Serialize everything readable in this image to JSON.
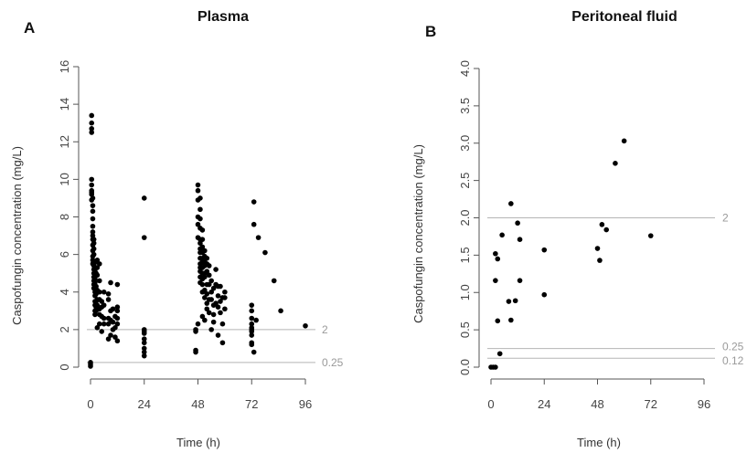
{
  "chart_data": [
    {
      "type": "scatter",
      "panel_label": "A",
      "title": "Plasma",
      "xlabel": "Time (h)",
      "ylabel": "Caspofungin concentration (mg/L)",
      "xlim": [
        0,
        96
      ],
      "ylim": [
        0,
        16
      ],
      "xticks": [
        0,
        24,
        48,
        72,
        96
      ],
      "yticks": [
        0,
        2,
        4,
        6,
        8,
        10,
        12,
        14,
        16
      ],
      "reference_lines": [
        {
          "y": 2,
          "label": "2"
        },
        {
          "y": 0.25,
          "label": "0.25"
        }
      ],
      "x": [
        0,
        0,
        0,
        0.5,
        0.5,
        0.5,
        0.5,
        0.5,
        0.5,
        0.5,
        0.5,
        0.5,
        0.5,
        1,
        1,
        1,
        1,
        1,
        1,
        1,
        1,
        1,
        1,
        1,
        1,
        1,
        1.5,
        1.5,
        1.5,
        1.5,
        1.5,
        1.5,
        1.5,
        1.5,
        1.5,
        1.5,
        1.5,
        2,
        2,
        2,
        2,
        2,
        2,
        2,
        2,
        2,
        2,
        2,
        2.5,
        2.5,
        2.5,
        2.5,
        2.5,
        2.5,
        2.5,
        2.5,
        3,
        3,
        3,
        3,
        3,
        3,
        3,
        4,
        4,
        4,
        4,
        4,
        4,
        4,
        5,
        5,
        5,
        5,
        6,
        6,
        6,
        6,
        8,
        8,
        8,
        8,
        8,
        9,
        9,
        9,
        9,
        10,
        10,
        10,
        11,
        11,
        11,
        12,
        12,
        12,
        12,
        12,
        12,
        24,
        24,
        24,
        24,
        24,
        24,
        24,
        24,
        24,
        24,
        47,
        47,
        47,
        47,
        48,
        48,
        48,
        48,
        48,
        48,
        48,
        49,
        49,
        49,
        49,
        49,
        49,
        49,
        49,
        49,
        49,
        49,
        49,
        49,
        49,
        50,
        50,
        50,
        50,
        50,
        50,
        50,
        50,
        50,
        50,
        50,
        50,
        51,
        51,
        51,
        51,
        51,
        51,
        51,
        51,
        51,
        52,
        52,
        52,
        52,
        52,
        52,
        52,
        53,
        53,
        53,
        53,
        53,
        54,
        54,
        54,
        54,
        55,
        55,
        55,
        55,
        56,
        56,
        56,
        57,
        57,
        57,
        57,
        58,
        58,
        58,
        59,
        59,
        59,
        60,
        60,
        60,
        72,
        72,
        72,
        72,
        72,
        72,
        72,
        72,
        72,
        72,
        73,
        73,
        73,
        74,
        75,
        78,
        82,
        85,
        96
      ],
      "y": [
        0.05,
        0.15,
        0.25,
        13.4,
        13.0,
        12.7,
        12.5,
        10.0,
        9.7,
        9.4,
        9.3,
        9.2,
        8.9,
        9.0,
        8.6,
        8.3,
        7.9,
        7.5,
        7.2,
        7.0,
        6.8,
        6.5,
        6.2,
        5.9,
        5.7,
        5.5,
        6.8,
        6.6,
        6.3,
        6.0,
        5.4,
        5.2,
        5.0,
        4.8,
        4.6,
        4.4,
        4.2,
        5.1,
        4.9,
        4.7,
        4.5,
        4.3,
        4.0,
        3.8,
        3.5,
        3.3,
        3.0,
        2.8,
        5.6,
        5.0,
        4.3,
        4.0,
        3.9,
        3.5,
        3.2,
        3.0,
        5.7,
        5.3,
        4.9,
        4.1,
        3.6,
        3.3,
        2.1,
        5.5,
        4.6,
        4.0,
        3.6,
        3.1,
        2.8,
        2.3,
        3.5,
        3.2,
        2.7,
        1.9,
        4.0,
        3.3,
        2.6,
        2.3,
        3.9,
        3.6,
        2.6,
        2.3,
        1.5,
        4.5,
        3.0,
        2.5,
        1.7,
        3.1,
        2.4,
        2.0,
        2.7,
        2.1,
        1.6,
        4.4,
        3.2,
        3.0,
        2.6,
        2.3,
        1.4,
        9.0,
        6.9,
        2.0,
        1.9,
        1.8,
        1.5,
        1.3,
        1.0,
        0.8,
        0.6,
        2.0,
        1.9,
        0.9,
        0.8,
        9.7,
        9.4,
        8.9,
        8.0,
        7.6,
        6.9,
        2.3,
        9.0,
        8.4,
        7.9,
        7.4,
        6.8,
        6.6,
        6.3,
        6.1,
        5.8,
        5.5,
        5.3,
        5.1,
        4.8,
        4.5,
        7.3,
        6.8,
        6.4,
        6.1,
        5.8,
        5.6,
        5.3,
        5.0,
        4.7,
        4.4,
        4.0,
        2.7,
        6.2,
        5.9,
        5.6,
        5.4,
        5.0,
        4.8,
        4.1,
        3.7,
        2.5,
        5.8,
        5.5,
        5.1,
        4.4,
        3.9,
        3.4,
        3.1,
        5.4,
        4.9,
        4.4,
        3.6,
        2.9,
        4.6,
        4.0,
        3.6,
        2.0,
        4.2,
        3.3,
        2.8,
        2.4,
        5.2,
        4.4,
        3.4,
        4.3,
        3.8,
        3.2,
        1.7,
        4.3,
        3.5,
        2.9,
        3.7,
        2.3,
        1.3,
        4.0,
        3.7,
        3.1,
        3.3,
        3.0,
        2.6,
        2.3,
        2.1,
        2.0,
        1.9,
        1.7,
        1.3,
        1.2,
        0.8,
        8.8,
        7.6,
        2.5,
        6.9,
        6.1,
        4.6,
        3.0,
        2.2
      ],
      "point_color": "#000000"
    },
    {
      "type": "scatter",
      "panel_label": "B",
      "title": "Peritoneal fluid",
      "xlabel": "Time (h)",
      "ylabel": "Caspofungin concentration (mg/L)",
      "xlim": [
        0,
        96
      ],
      "ylim": [
        0,
        4
      ],
      "xticks": [
        0,
        24,
        48,
        72,
        96
      ],
      "yticks": [
        "0.0",
        "0.5",
        "1.0",
        "1.5",
        "2.0",
        "2.5",
        "3.0",
        "3.5",
        "4.0"
      ],
      "reference_lines": [
        {
          "y": 2,
          "label": "2"
        },
        {
          "y": 0.25,
          "label": "0.25"
        },
        {
          "y": 0.12,
          "label": "0.12"
        }
      ],
      "x": [
        0,
        1,
        2,
        2,
        2,
        3,
        3,
        4,
        5,
        8,
        9,
        9,
        11,
        12,
        13,
        24,
        24,
        48,
        49,
        50,
        52,
        56,
        60,
        72
      ],
      "y": [
        0.0,
        0.0,
        0.0,
        1.16,
        1.52,
        0.62,
        1.45,
        0.18,
        1.77,
        0.88,
        2.19,
        0.63,
        0.89,
        1.93,
        1.16,
        0.97,
        1.57,
        1.59,
        1.43,
        1.91,
        1.84,
        2.73,
        3.03,
        1.76
      ],
      "extra_points": [
        {
          "x": 13,
          "y": 1.71
        }
      ],
      "point_color": "#000000"
    }
  ]
}
